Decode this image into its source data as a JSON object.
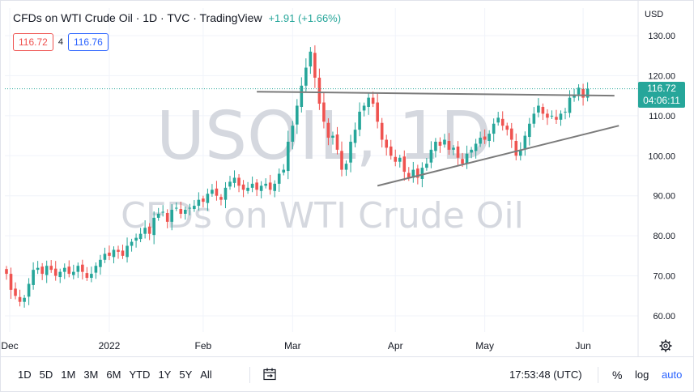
{
  "header": {
    "title": "CFDs on WTI Crude Oil · 1D · TVC · TradingView",
    "change": "+1.91 (+1.66%)"
  },
  "ohlc": {
    "sell": "116.72",
    "spread": "4",
    "buy": "116.76"
  },
  "currency": "USD",
  "watermark": {
    "symbol": "USOIL, 1D",
    "name": "CFDs on WTI Crude Oil"
  },
  "last_price": {
    "price": "116.72",
    "countdown": "04:06:11"
  },
  "toolbar": {
    "ranges": [
      "1D",
      "5D",
      "1M",
      "3M",
      "6M",
      "YTD",
      "1Y",
      "5Y",
      "All"
    ],
    "clock": "17:53:48 (UTC)",
    "percent": "%",
    "log": "log",
    "auto": "auto"
  },
  "colors": {
    "up": "#26a69a",
    "down": "#ef5350",
    "trend": "#7b7b7b"
  },
  "icons": [
    "calendar-range-icon",
    "gear-icon"
  ],
  "chart_data": {
    "type": "candlestick",
    "y_ticks": [
      "130.00",
      "120.00",
      "110.00",
      "100.00",
      "90.00",
      "80.00",
      "70.00",
      "60.00"
    ],
    "ylim": [
      55,
      135
    ],
    "x_ticks": [
      {
        "label": "Dec",
        "index": 0
      },
      {
        "label": "2022",
        "index": 23
      },
      {
        "label": "Feb",
        "index": 44
      },
      {
        "label": "Mar",
        "index": 64
      },
      {
        "label": "Apr",
        "index": 87
      },
      {
        "label": "May",
        "index": 107
      },
      {
        "label": "Jun",
        "index": 129
      }
    ],
    "closes": [
      70.5,
      66.5,
      65.0,
      63.5,
      64.5,
      68.0,
      71.5,
      72.0,
      70.5,
      72.5,
      71.5,
      70.0,
      71.0,
      72.0,
      70.5,
      71.0,
      72.5,
      71.0,
      69.5,
      70.5,
      72.5,
      74.0,
      75.5,
      75.0,
      76.5,
      76.0,
      75.0,
      77.5,
      78.5,
      79.5,
      80.5,
      82.0,
      80.5,
      84.5,
      85.5,
      86.0,
      83.5,
      86.5,
      87.0,
      85.5,
      86.5,
      87.0,
      87.5,
      89.0,
      88.5,
      90.5,
      91.5,
      90.0,
      89.0,
      92.0,
      93.5,
      94.5,
      92.5,
      91.5,
      92.0,
      93.0,
      91.5,
      92.5,
      93.0,
      91.5,
      93.0,
      95.5,
      96.5,
      103.5,
      107.5,
      112.5,
      117.5,
      122.0,
      126.0,
      119.5,
      113.0,
      108.5,
      104.5,
      105.0,
      101.5,
      96.5,
      98.0,
      103.5,
      106.5,
      111.0,
      112.5,
      114.5,
      113.0,
      108.5,
      104.0,
      102.0,
      100.0,
      98.5,
      99.5,
      96.0,
      94.5,
      96.5,
      94.5,
      97.0,
      98.0,
      101.5,
      103.5,
      102.5,
      104.0,
      101.5,
      102.0,
      99.5,
      98.0,
      100.5,
      101.5,
      103.0,
      104.5,
      104.0,
      105.5,
      108.0,
      109.5,
      107.5,
      106.5,
      104.0,
      100.0,
      101.5,
      105.0,
      108.0,
      110.5,
      112.5,
      110.5,
      109.5,
      110.0,
      109.0,
      110.5,
      111.0,
      114.5,
      115.0,
      117.0,
      114.5,
      116.72
    ],
    "trendlines": [
      {
        "name": "resistance",
        "from": {
          "index": 56,
          "price": 116.0
        },
        "to": {
          "index": 136,
          "price": 115.0
        }
      },
      {
        "name": "support",
        "from": {
          "index": 83,
          "price": 92.5
        },
        "to": {
          "index": 137,
          "price": 107.5
        }
      }
    ]
  }
}
